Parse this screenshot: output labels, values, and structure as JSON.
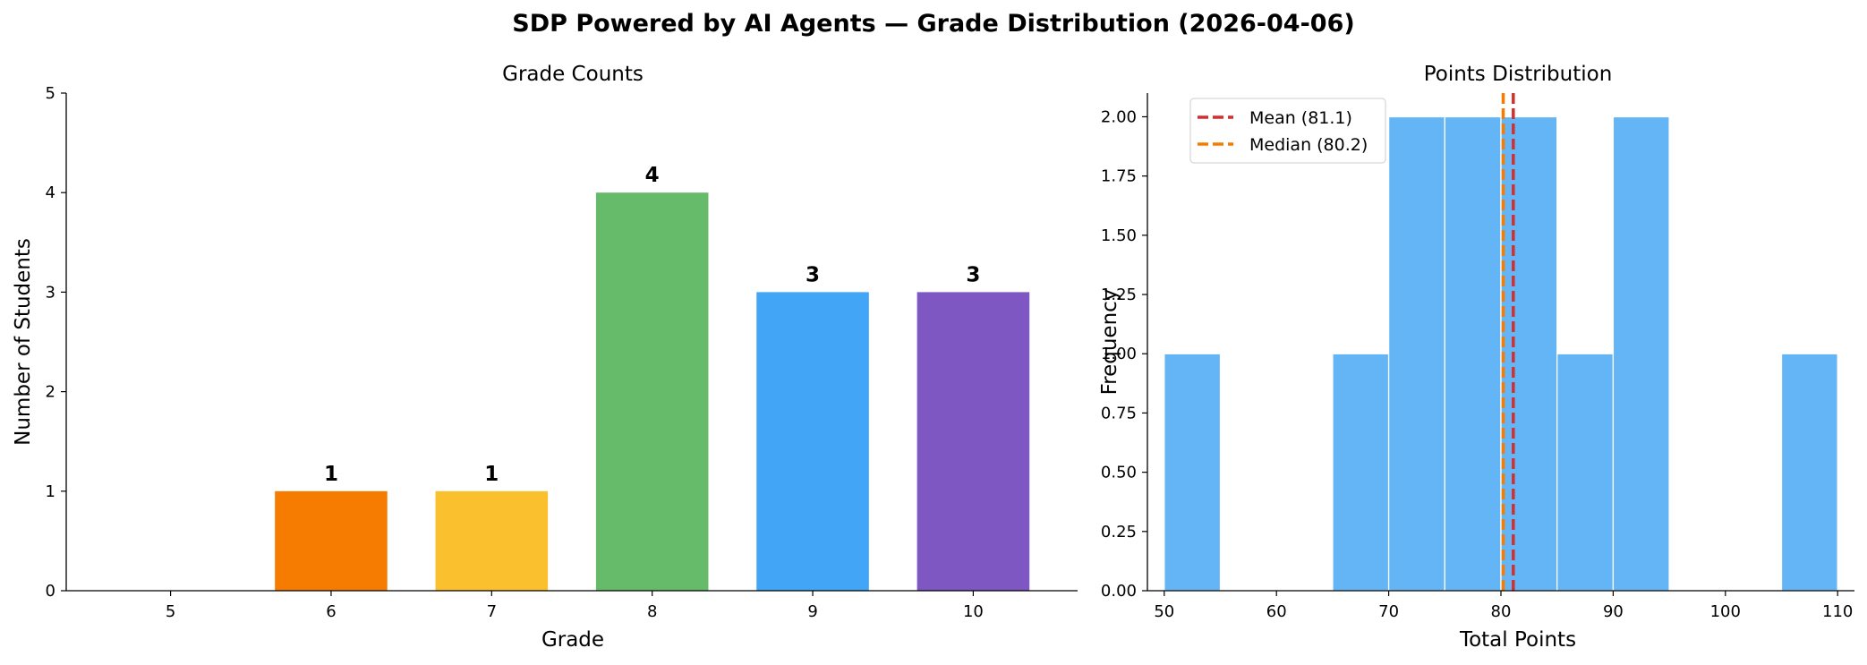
{
  "figure_title": "SDP Powered by AI Agents — Grade Distribution (2026-04-06)",
  "chart_data": [
    {
      "type": "bar",
      "title": "Grade Counts",
      "xlabel": "Grade",
      "ylabel": "Number of Students",
      "categories": [
        "5",
        "6",
        "7",
        "8",
        "9",
        "10"
      ],
      "values": [
        0,
        1,
        1,
        4,
        3,
        3
      ],
      "data_labels": [
        "",
        "1",
        "1",
        "4",
        "3",
        "3"
      ],
      "colors": [
        "#e53935",
        "#f57c00",
        "#fbc02d",
        "#66bb6a",
        "#42a5f5",
        "#7e57c2"
      ],
      "ylim": [
        0,
        5
      ],
      "yticks": [
        "0",
        "1",
        "2",
        "3",
        "4",
        "5"
      ],
      "grid": false
    },
    {
      "type": "histogram",
      "title": "Points Distribution",
      "xlabel": "Total Points",
      "ylabel": "Frequency",
      "bins": [
        {
          "from": 50,
          "to": 55,
          "count": 1
        },
        {
          "from": 55,
          "to": 60,
          "count": 0
        },
        {
          "from": 60,
          "to": 65,
          "count": 0
        },
        {
          "from": 65,
          "to": 70,
          "count": 1
        },
        {
          "from": 70,
          "to": 75,
          "count": 2
        },
        {
          "from": 75,
          "to": 80,
          "count": 2
        },
        {
          "from": 80,
          "to": 85,
          "count": 2
        },
        {
          "from": 85,
          "to": 90,
          "count": 1
        },
        {
          "from": 90,
          "to": 95,
          "count": 2
        },
        {
          "from": 95,
          "to": 100,
          "count": 0
        },
        {
          "from": 100,
          "to": 105,
          "count": 0
        },
        {
          "from": 105,
          "to": 110,
          "count": 1
        }
      ],
      "bar_color": "#64b5f6",
      "xlim": [
        48.5,
        111.5
      ],
      "xticks": [
        "50",
        "60",
        "70",
        "80",
        "90",
        "100",
        "110"
      ],
      "ylim": [
        0,
        2.1
      ],
      "yticks": [
        "0.00",
        "0.25",
        "0.50",
        "0.75",
        "1.00",
        "1.25",
        "1.50",
        "1.75",
        "2.00"
      ],
      "reference_lines": [
        {
          "label": "Mean (81.1)",
          "value": 81.1,
          "color": "#d32f2f",
          "style": "dashed"
        },
        {
          "label": "Median (80.2)",
          "value": 80.2,
          "color": "#f57c00",
          "style": "dashed"
        }
      ],
      "legend_position": "top-left",
      "grid": false
    }
  ]
}
